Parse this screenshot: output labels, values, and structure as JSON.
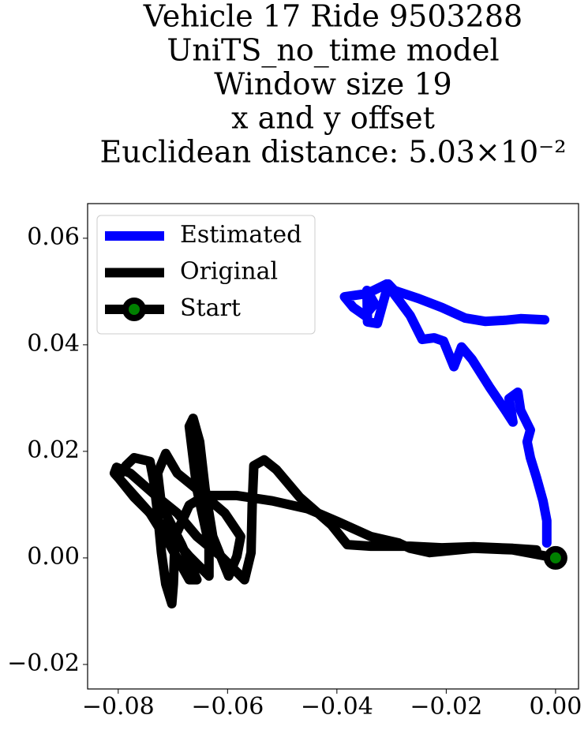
{
  "chart_data": {
    "type": "line",
    "title": [
      "Vehicle 17 Ride 9503288",
      "UniTS_no_time model",
      "Window size 19",
      "x and y offset",
      "Euclidean distance: 5.03×10⁻²"
    ],
    "xlim": [
      -0.0856,
      0.0042
    ],
    "ylim": [
      -0.0246,
      0.0665
    ],
    "xticks": [
      {
        "value": -0.08,
        "label": "−0.08"
      },
      {
        "value": -0.06,
        "label": "−0.06"
      },
      {
        "value": -0.04,
        "label": "−0.04"
      },
      {
        "value": -0.02,
        "label": "−0.02"
      },
      {
        "value": 0,
        "label": "0.00"
      }
    ],
    "yticks": [
      {
        "value": -0.02,
        "label": "−0.02"
      },
      {
        "value": 0,
        "label": "0.00"
      },
      {
        "value": 0.02,
        "label": "0.02"
      },
      {
        "value": 0.04,
        "label": "0.04"
      },
      {
        "value": 0.06,
        "label": "0.06"
      }
    ],
    "grid": false,
    "legend": "upper left",
    "series": [
      {
        "name": "Estimated",
        "color": "#0000ff",
        "x": [
          -0.002,
          -0.0064,
          -0.0092,
          -0.0129,
          -0.0165,
          -0.0208,
          -0.0251,
          -0.0295,
          -0.0306,
          -0.0316,
          -0.0326,
          -0.0344,
          -0.0345,
          -0.0331,
          -0.0349,
          -0.037,
          -0.0386,
          -0.0345,
          -0.0309,
          -0.0287,
          -0.0266,
          -0.0244,
          -0.0222,
          -0.0205,
          -0.0186,
          -0.0172,
          -0.0153,
          -0.0121,
          -0.0092,
          -0.0078,
          -0.0085,
          -0.0069,
          -0.0064,
          -0.0046,
          -0.0052,
          -0.0046,
          -0.0035,
          -0.0023,
          -0.0016,
          -0.0016
        ],
        "y": [
          0.0447,
          0.0449,
          0.0446,
          0.0444,
          0.045,
          0.047,
          0.0487,
          0.0502,
          0.0514,
          0.0477,
          0.044,
          0.0443,
          0.0502,
          0.0477,
          0.0455,
          0.047,
          0.049,
          0.0496,
          0.0514,
          0.0484,
          0.0455,
          0.041,
          0.0413,
          0.0407,
          0.0359,
          0.0396,
          0.0373,
          0.0321,
          0.0277,
          0.0255,
          0.0299,
          0.0311,
          0.0277,
          0.024,
          0.0218,
          0.0188,
          0.0151,
          0.0107,
          0.007,
          0.0028
        ]
      },
      {
        "name": "Original",
        "color": "#000000",
        "x": [
          0,
          -0.0078,
          -0.015,
          -0.023,
          -0.0266,
          -0.0287,
          -0.0338,
          -0.0396,
          -0.0453,
          -0.0518,
          -0.0583,
          -0.0641,
          -0.067,
          -0.0696,
          -0.0699,
          -0.0702,
          -0.0713,
          -0.0721,
          -0.0728,
          -0.0735,
          -0.0742,
          -0.0771,
          -0.0786,
          -0.08,
          -0.0771,
          -0.0713,
          -0.067,
          -0.0634,
          -0.0634,
          -0.0656,
          -0.067,
          -0.0663,
          -0.0651,
          -0.0641,
          -0.0627,
          -0.0598,
          -0.0583,
          -0.0576,
          -0.0605,
          -0.0656,
          -0.0692,
          -0.0713,
          -0.0728,
          -0.0721,
          -0.0684,
          -0.0656,
          -0.067,
          -0.0706,
          -0.0742,
          -0.0807,
          -0.0803,
          -0.0778,
          -0.0728,
          -0.0692,
          -0.0656,
          -0.0612,
          -0.0569,
          -0.0557,
          -0.0555,
          -0.0552,
          -0.0533,
          -0.0511,
          -0.0468,
          -0.041,
          -0.0381,
          -0.0338,
          -0.0266,
          -0.0208,
          -0.015,
          -0.0078,
          -0.0035
        ],
        "y": [
          0,
          0.0015,
          0.0018,
          0.001,
          0.0018,
          0.0028,
          0.004,
          0.0067,
          0.0092,
          0.0107,
          0.0117,
          0.0117,
          0.0099,
          0.004,
          -0.0049,
          -0.0086,
          -0.0049,
          0.001,
          0.0084,
          0.0144,
          0.0181,
          0.0188,
          0.0173,
          0.0151,
          0.0114,
          0.0055,
          0.0003,
          -0.0034,
          0.0025,
          0.0129,
          0.0247,
          0.0262,
          0.0218,
          0.0129,
          0.004,
          -0.0034,
          0.0003,
          0.004,
          0.0084,
          0.0129,
          0.0159,
          0.0196,
          0.0159,
          0.0099,
          0.0025,
          -0.0041,
          -0.0041,
          0.0025,
          0.0084,
          0.0159,
          0.017,
          0.0159,
          0.0114,
          0.0084,
          0.004,
          0.0003,
          -0.0041,
          0.001,
          0.0099,
          0.0173,
          0.0184,
          0.0166,
          0.0114,
          0.0062,
          0.0025,
          0.0022,
          0.0022,
          0.0019,
          0.0021,
          0.0018,
          0.0015
        ]
      },
      {
        "name": "Start",
        "color": "#000000",
        "marker_color": "#008000",
        "x": [
          0
        ],
        "y": [
          0
        ]
      }
    ]
  }
}
